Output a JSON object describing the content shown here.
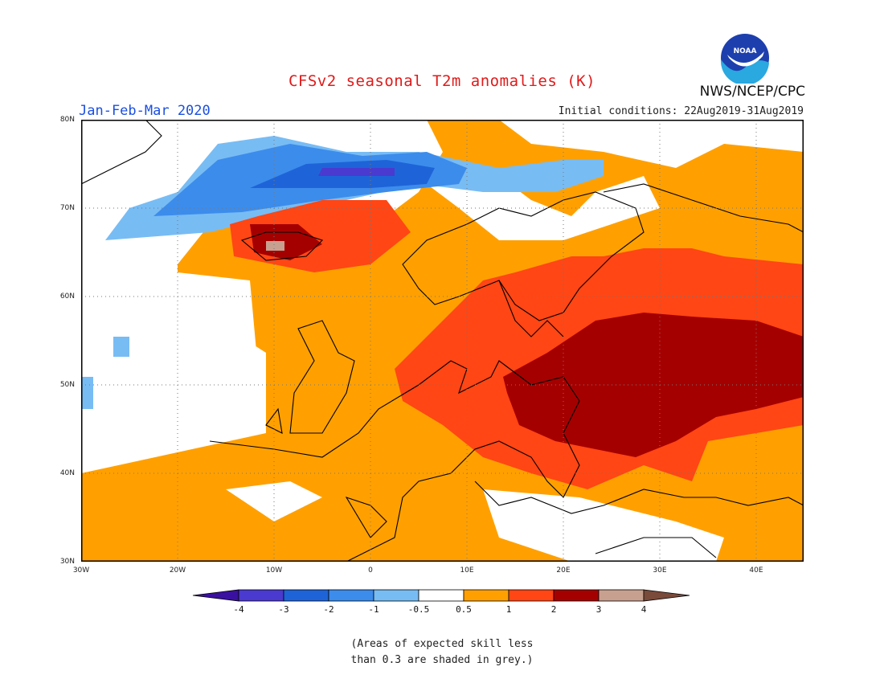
{
  "title": "CFSv2 seasonal T2m anomalies (K)",
  "period": "Jan-Feb-Mar 2020",
  "initial_conditions": "Initial conditions: 22Aug2019-31Aug2019",
  "agency": "NWS/NCEP/CPC",
  "logo_text": "NOAA",
  "lat_labels": [
    "80N",
    "70N",
    "60N",
    "50N",
    "40N",
    "30N"
  ],
  "lon_labels": [
    "30W",
    "20W",
    "10W",
    "0",
    "10E",
    "20E",
    "30E",
    "40E"
  ],
  "colorbar": {
    "labels": [
      "-4",
      "-3",
      "-2",
      "-1",
      "-0.5",
      "0.5",
      "1",
      "2",
      "3",
      "4"
    ],
    "colors": [
      "#3a10a0",
      "#4a3ad0",
      "#1e64d8",
      "#3c8cec",
      "#78bcf4",
      "#ffffff",
      "#ffa000",
      "#ff4614",
      "#a50000",
      "#c8a090",
      "#7a4a3a"
    ]
  },
  "note_line1": "(Areas of expected skill less",
  "note_line2": "than 0.3 are shaded in grey.)"
}
